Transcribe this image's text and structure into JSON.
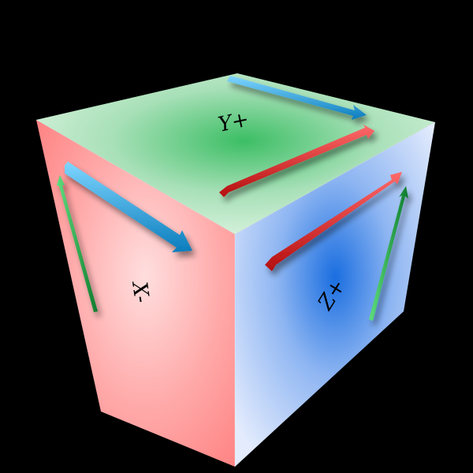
{
  "faces": {
    "top": {
      "label": "Y+",
      "tint": "#c8ecd2",
      "glow": "#3cbe64"
    },
    "left": {
      "label": "X-",
      "tint": "#ff9a9a",
      "glow": "#ffd2d2"
    },
    "right": {
      "label": "Z+",
      "tint": "#dce6ff",
      "glow": "#1a6ee0"
    }
  },
  "arrow_colors": {
    "x_axis": "#1aa0d8",
    "y_axis": "#22a84a",
    "z_axis": "#e02020"
  },
  "background": "#000000"
}
